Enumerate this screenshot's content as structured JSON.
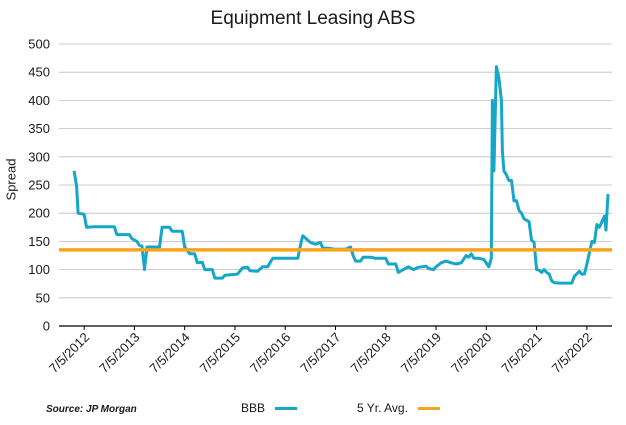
{
  "chart_data": {
    "type": "line",
    "title": "Equipment Leasing ABS",
    "ylabel": "Spread",
    "xlabel": "",
    "ylim": [
      0,
      500
    ],
    "yticks": [
      0,
      50,
      100,
      150,
      200,
      250,
      300,
      350,
      400,
      450,
      500
    ],
    "xticks": [
      "7/5/2012",
      "7/5/2013",
      "7/5/2014",
      "7/5/2015",
      "7/5/2016",
      "7/5/2017",
      "7/5/2018",
      "7/5/2019",
      "7/5/2020",
      "7/5/2021",
      "7/5/2022"
    ],
    "grid": true,
    "legend_position": "bottom",
    "source": "Source: JP Morgan",
    "series": [
      {
        "name": "BBB",
        "color": "#16A6C8",
        "points": [
          [
            2012.3,
            275
          ],
          [
            2012.35,
            248
          ],
          [
            2012.38,
            200
          ],
          [
            2012.5,
            198
          ],
          [
            2012.55,
            175
          ],
          [
            2012.7,
            176
          ],
          [
            2012.9,
            176
          ],
          [
            2013.1,
            176
          ],
          [
            2013.15,
            162
          ],
          [
            2013.3,
            162
          ],
          [
            2013.4,
            162
          ],
          [
            2013.45,
            155
          ],
          [
            2013.55,
            150
          ],
          [
            2013.6,
            143
          ],
          [
            2013.65,
            142
          ],
          [
            2013.7,
            100
          ],
          [
            2013.75,
            140
          ],
          [
            2013.85,
            140
          ],
          [
            2014.0,
            140
          ],
          [
            2014.05,
            175
          ],
          [
            2014.2,
            175
          ],
          [
            2014.25,
            168
          ],
          [
            2014.45,
            168
          ],
          [
            2014.5,
            140
          ],
          [
            2014.6,
            128
          ],
          [
            2014.7,
            128
          ],
          [
            2014.75,
            112
          ],
          [
            2014.85,
            113
          ],
          [
            2014.9,
            100
          ],
          [
            2015.05,
            100
          ],
          [
            2015.1,
            85
          ],
          [
            2015.25,
            85
          ],
          [
            2015.3,
            90
          ],
          [
            2015.55,
            92
          ],
          [
            2015.65,
            103
          ],
          [
            2015.75,
            104
          ],
          [
            2015.8,
            98
          ],
          [
            2015.95,
            97
          ],
          [
            2016.05,
            105
          ],
          [
            2016.15,
            105
          ],
          [
            2016.25,
            120
          ],
          [
            2016.5,
            120
          ],
          [
            2016.75,
            120
          ],
          [
            2016.82,
            150
          ],
          [
            2016.85,
            160
          ],
          [
            2017.0,
            148
          ],
          [
            2017.1,
            145
          ],
          [
            2017.2,
            148
          ],
          [
            2017.25,
            138
          ],
          [
            2017.35,
            138
          ],
          [
            2017.5,
            136
          ],
          [
            2017.7,
            136
          ],
          [
            2017.8,
            140
          ],
          [
            2017.85,
            125
          ],
          [
            2017.9,
            115
          ],
          [
            2018.0,
            115
          ],
          [
            2018.05,
            122
          ],
          [
            2018.2,
            122
          ],
          [
            2018.3,
            120
          ],
          [
            2018.5,
            120
          ],
          [
            2018.55,
            110
          ],
          [
            2018.7,
            110
          ],
          [
            2018.75,
            95
          ],
          [
            2018.85,
            100
          ],
          [
            2018.95,
            105
          ],
          [
            2019.05,
            100
          ],
          [
            2019.15,
            104
          ],
          [
            2019.3,
            106
          ],
          [
            2019.35,
            102
          ],
          [
            2019.45,
            100
          ],
          [
            2019.5,
            105
          ],
          [
            2019.6,
            112
          ],
          [
            2019.7,
            115
          ],
          [
            2019.8,
            112
          ],
          [
            2019.9,
            110
          ],
          [
            2020.0,
            112
          ],
          [
            2020.1,
            125
          ],
          [
            2020.15,
            122
          ],
          [
            2020.2,
            128
          ],
          [
            2020.25,
            120
          ],
          [
            2020.35,
            120
          ],
          [
            2020.45,
            118
          ],
          [
            2020.55,
            105
          ],
          [
            2020.6,
            120
          ],
          [
            2020.62,
            400
          ],
          [
            2020.65,
            275
          ],
          [
            2020.7,
            460
          ],
          [
            2020.75,
            440
          ],
          [
            2020.8,
            400
          ],
          [
            2020.82,
            310
          ],
          [
            2020.85,
            275
          ],
          [
            2020.9,
            268
          ],
          [
            2020.95,
            258
          ],
          [
            2021.0,
            258
          ],
          [
            2021.05,
            222
          ],
          [
            2021.1,
            222
          ],
          [
            2021.15,
            205
          ],
          [
            2021.2,
            200
          ],
          [
            2021.25,
            190
          ],
          [
            2021.35,
            185
          ],
          [
            2021.4,
            152
          ],
          [
            2021.45,
            148
          ],
          [
            2021.5,
            100
          ],
          [
            2021.55,
            99
          ],
          [
            2021.6,
            95
          ],
          [
            2021.65,
            100
          ],
          [
            2021.7,
            95
          ],
          [
            2021.75,
            92
          ],
          [
            2021.8,
            80
          ],
          [
            2021.85,
            77
          ],
          [
            2021.95,
            76
          ],
          [
            2022.1,
            76
          ],
          [
            2022.2,
            76
          ],
          [
            2022.25,
            88
          ],
          [
            2022.35,
            97
          ],
          [
            2022.4,
            92
          ],
          [
            2022.45,
            92
          ],
          [
            2022.5,
            110
          ],
          [
            2022.55,
            130
          ],
          [
            2022.6,
            150
          ],
          [
            2022.65,
            148
          ],
          [
            2022.7,
            180
          ],
          [
            2022.75,
            175
          ],
          [
            2022.85,
            195
          ],
          [
            2022.88,
            170
          ],
          [
            2022.92,
            234
          ]
        ]
      },
      {
        "name": "5 Yr. Avg.",
        "color": "#F7A51C",
        "points": [
          [
            2012.0,
            135
          ],
          [
            2023.0,
            135
          ]
        ]
      }
    ]
  }
}
